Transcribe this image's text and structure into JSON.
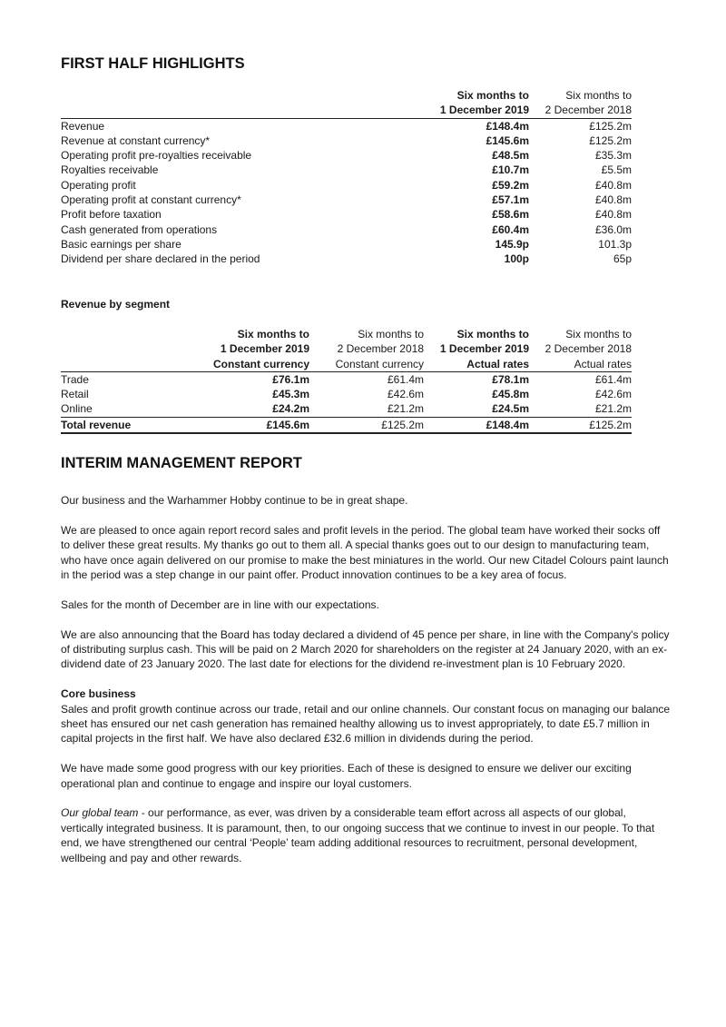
{
  "highlights": {
    "title": "FIRST HALF HIGHLIGHTS",
    "headers": [
      [
        "Six months to",
        "1 December 2019"
      ],
      [
        "Six months to",
        "2 December 2018"
      ]
    ],
    "rows": [
      {
        "label": "Revenue",
        "current": "£148.4m",
        "prior": "£125.2m"
      },
      {
        "label": "Revenue at constant currency*",
        "current": "£145.6m",
        "prior": "£125.2m"
      },
      {
        "label": "Operating profit pre-royalties receivable",
        "current": "£48.5m",
        "prior": "£35.3m"
      },
      {
        "label": "Royalties receivable",
        "current": "£10.7m",
        "prior": "£5.5m"
      },
      {
        "label": "Operating profit",
        "current": "£59.2m",
        "prior": "£40.8m"
      },
      {
        "label": "Operating profit at constant currency*",
        "current": "£57.1m",
        "prior": "£40.8m"
      },
      {
        "label": "Profit before taxation",
        "current": "£58.6m",
        "prior": "£40.8m"
      },
      {
        "label": "Cash generated from operations",
        "current": "£60.4m",
        "prior": "£36.0m"
      },
      {
        "label": "Basic earnings per share",
        "current": "145.9p",
        "prior": "101.3p"
      },
      {
        "label": "Dividend per share declared in the period",
        "current": "100p",
        "prior": "65p"
      }
    ]
  },
  "segment": {
    "title": "Revenue by segment",
    "headers": [
      [
        "Six months to",
        "1 December 2019",
        "Constant currency"
      ],
      [
        "Six months to",
        "2 December 2018",
        "Constant currency"
      ],
      [
        "Six months to",
        "1 December 2019",
        "Actual rates"
      ],
      [
        "Six months to",
        "2 December 2018",
        "Actual rates"
      ]
    ],
    "rows": [
      {
        "label": "Trade",
        "values": [
          "£76.1m",
          "£61.4m",
          "£78.1m",
          "£61.4m"
        ]
      },
      {
        "label": "Retail",
        "values": [
          "£45.3m",
          "£42.6m",
          "£45.8m",
          "£42.6m"
        ]
      },
      {
        "label": "Online",
        "values": [
          "£24.2m",
          "£21.2m",
          "£24.5m",
          "£21.2m"
        ]
      }
    ],
    "total": {
      "label": "Total revenue",
      "values": [
        "£145.6m",
        "£125.2m",
        "£148.4m",
        "£125.2m"
      ]
    }
  },
  "report": {
    "title": "INTERIM MANAGEMENT REPORT",
    "p1": "Our business and the Warhammer Hobby continue to be in great shape.",
    "p2": "We are pleased to once again report record sales and profit levels in the period. The global team have worked their socks off to deliver these great results. My thanks go out to them all. A special thanks goes out to our design to manufacturing team, who have once again delivered on our promise to make the best miniatures in the world. Our new Citadel Colours paint launch in the period was a step change in our paint offer. Product innovation continues to be a key area of focus.",
    "p3": "Sales for the month of December are in line with our expectations.",
    "p4": "We are also announcing that the Board has today declared a dividend of 45 pence per share, in line with the Company's policy of distributing surplus cash. This will be paid on 2 March 2020 for shareholders on the register at 24 January 2020, with an ex-dividend date of 23 January 2020. The last date for elections for the dividend re-investment plan is 10 February 2020.",
    "core_heading": "Core business",
    "p5": "Sales and profit growth continue across our trade, retail and our online channels. Our constant focus on managing our balance sheet has ensured our net cash generation has remained healthy allowing us to invest appropriately, to date £5.7 million in capital projects in the first half. We have also declared £32.6 million in dividends during the period.",
    "p6": "We have made some good progress with our key priorities. Each of these is designed to ensure we deliver our exciting operational plan and continue to engage and inspire our loyal customers.",
    "p7_lead": "Our global team",
    "p7": " - our performance, as ever, was driven by a considerable team effort across all aspects of our global, vertically integrated business. It is paramount, then, to our ongoing success that we continue to invest in our people. To that end, we have strengthened our central ‘People’ team adding additional resources to recruitment, personal development, wellbeing and pay and other rewards."
  }
}
